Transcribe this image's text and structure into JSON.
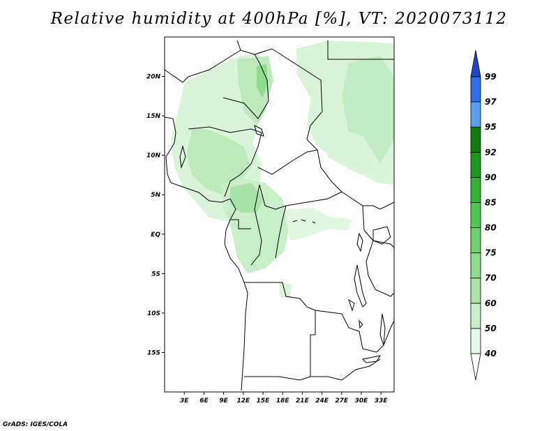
{
  "title": "Relative humidity at 400hPa [%], VT: 2020073112",
  "credit": "GrADS: IGES/COLA",
  "map": {
    "lon_range": [
      0,
      35
    ],
    "lat_range": [
      -20,
      25
    ],
    "lat_ticks": [
      {
        "value": 20,
        "label": "20N"
      },
      {
        "value": 15,
        "label": "15N"
      },
      {
        "value": 10,
        "label": "10N"
      },
      {
        "value": 5,
        "label": "5N"
      },
      {
        "value": 0,
        "label": "EQ"
      },
      {
        "value": -5,
        "label": "5S"
      },
      {
        "value": -10,
        "label": "10S"
      },
      {
        "value": -15,
        "label": "15S"
      }
    ],
    "lon_ticks": [
      {
        "value": 3,
        "label": "3E"
      },
      {
        "value": 6,
        "label": "6E"
      },
      {
        "value": 9,
        "label": "9E"
      },
      {
        "value": 12,
        "label": "12E"
      },
      {
        "value": 15,
        "label": "15E"
      },
      {
        "value": 18,
        "label": "18E"
      },
      {
        "value": 21,
        "label": "21E"
      },
      {
        "value": 24,
        "label": "24E"
      },
      {
        "value": 27,
        "label": "27E"
      },
      {
        "value": 30,
        "label": "30E"
      },
      {
        "value": 33,
        "label": "33E"
      }
    ]
  },
  "colorbar": {
    "levels": [
      "40",
      "50",
      "60",
      "70",
      "75",
      "80",
      "85",
      "90",
      "92",
      "95",
      "97",
      "99"
    ],
    "colors": [
      "#ffffff",
      "#e6f9e6",
      "#c8f0c8",
      "#aae6aa",
      "#8cdc8c",
      "#6ed26e",
      "#50c850",
      "#32b432",
      "#1e961e",
      "#0f7d0f",
      "#5aa0f0",
      "#2d6ee6",
      "#1e46c8"
    ]
  },
  "chart_data": {
    "type": "heatmap",
    "title": "Relative humidity at 400hPa [%], VT: 2020073112",
    "variable": "Relative humidity at 400hPa",
    "units": "%",
    "valid_time": "2020073112",
    "xlabel": "",
    "ylabel": "",
    "x_range": [
      0,
      35
    ],
    "y_range": [
      -20,
      25
    ],
    "contour_levels": [
      40,
      50,
      60,
      70,
      75,
      80,
      85,
      90,
      92,
      95,
      97,
      99
    ],
    "humid_regions": [
      {
        "lon": [
          2,
          18
        ],
        "lat": [
          4,
          24
        ],
        "max_level": 75
      },
      {
        "lon": [
          13,
          17
        ],
        "lat": [
          16,
          22
        ],
        "max_level": 80
      },
      {
        "lon": [
          21,
          35
        ],
        "lat": [
          7,
          25
        ],
        "max_level": 75
      },
      {
        "lon": [
          8,
          19
        ],
        "lat": [
          -5,
          9
        ],
        "max_level": 70
      },
      {
        "lon": [
          18,
          27
        ],
        "lat": [
          -3,
          3
        ],
        "max_level": 60
      }
    ]
  }
}
